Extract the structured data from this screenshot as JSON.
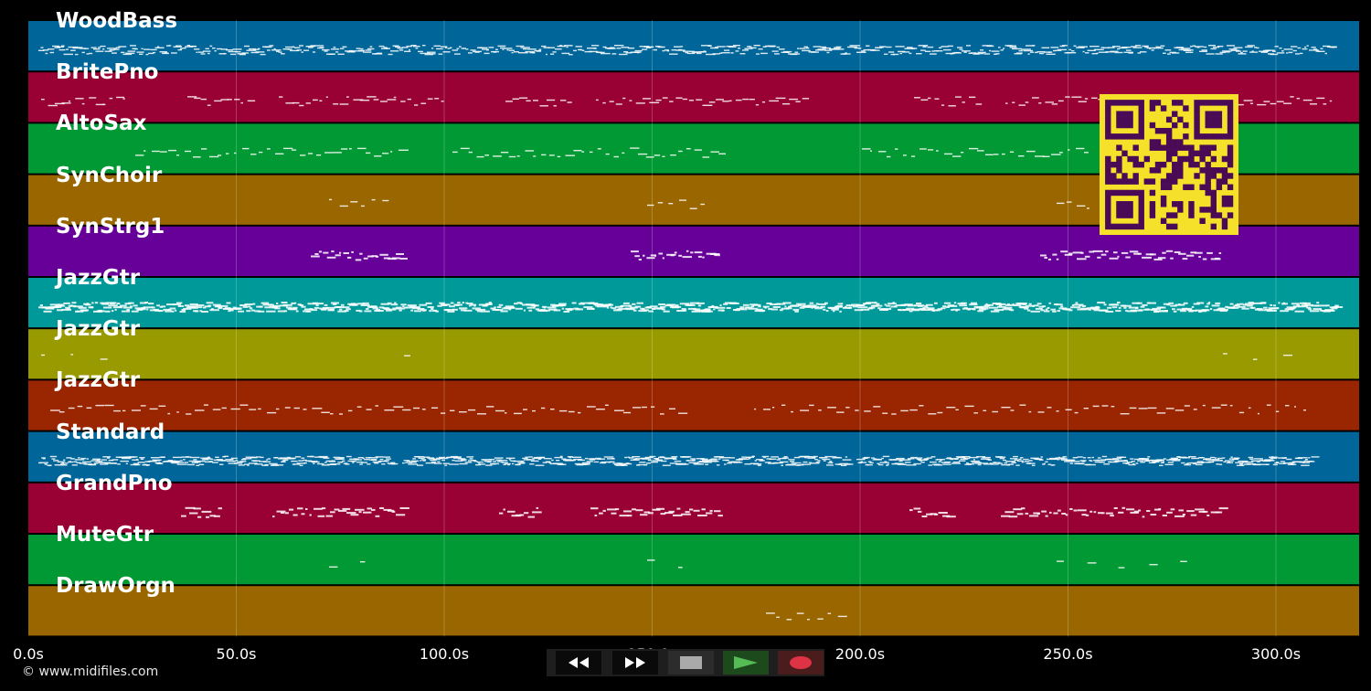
{
  "page": {
    "background": "#000000"
  },
  "tracks": [
    {
      "label": "WoodBass",
      "color": "#006699"
    },
    {
      "label": "BritePno",
      "color": "#990033"
    },
    {
      "label": "AltoSax",
      "color": "#009933"
    },
    {
      "label": "SynChoir",
      "color": "#996600"
    },
    {
      "label": "SynStrg1",
      "color": "#660099"
    },
    {
      "label": "JazzGtr",
      "color": "#009999"
    },
    {
      "label": "JazzGtr",
      "color": "#999900"
    },
    {
      "label": "JazzGtr",
      "color": "#992600"
    },
    {
      "label": "Standard",
      "color": "#006699"
    },
    {
      "label": "GrandPno",
      "color": "#990033"
    },
    {
      "label": "MuteGtr",
      "color": "#009933"
    },
    {
      "label": "DrawOrgn",
      "color": "#996600"
    }
  ],
  "timeline": {
    "ticks": [
      "0.0s",
      "50.0s",
      "100.0s",
      "150.0s",
      "200.0s",
      "250.0s",
      "300.0s"
    ],
    "tick_seconds": [
      0,
      50,
      100,
      150,
      200,
      250,
      300
    ],
    "max_seconds": 320
  },
  "copyright": "© www.midifiles.com",
  "transport": {
    "rewind_icon": "rewind-icon",
    "fast_forward_icon": "fast-forward-icon",
    "stop_icon": "stop-icon",
    "play_icon": "play-icon",
    "record_icon": "record-icon",
    "play_color": "#55bb55",
    "record_color": "#dd3344"
  },
  "qr_code": {
    "foreground": "#4b0a55",
    "background": "#f5e02a"
  }
}
